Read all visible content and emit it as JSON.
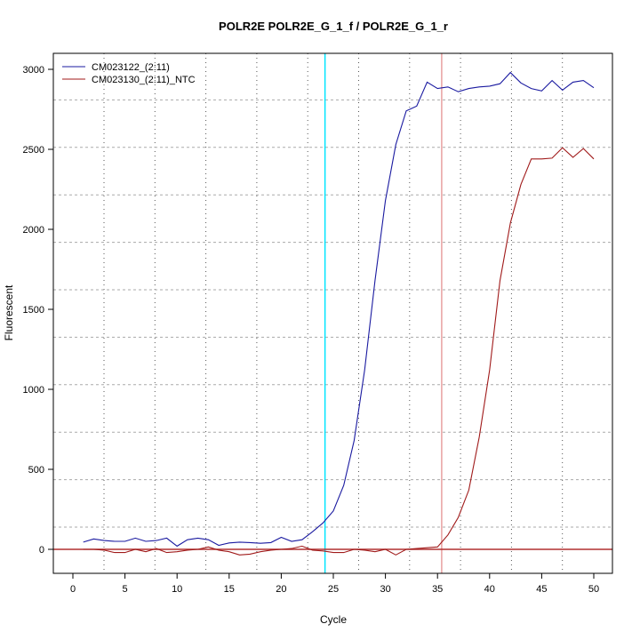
{
  "chart_data": {
    "type": "line",
    "title": "POLR2E  POLR2E_G_1_f / POLR2E_G_1_r",
    "xlabel": "Cycle",
    "ylabel": "Fluorescent",
    "xlim": [
      -1.9,
      51.7
    ],
    "ylim": [
      -150,
      3100
    ],
    "xticks": [
      0,
      5,
      10,
      15,
      20,
      25,
      30,
      35,
      40,
      45,
      50
    ],
    "yticks": [
      0,
      500,
      1000,
      1500,
      2000,
      2500,
      3000
    ],
    "grid": true,
    "legend_position": "top-left",
    "x": [
      1,
      2,
      3,
      4,
      5,
      6,
      7,
      8,
      9,
      10,
      11,
      12,
      13,
      14,
      15,
      16,
      17,
      18,
      19,
      20,
      21,
      22,
      23,
      24,
      25,
      26,
      27,
      28,
      29,
      30,
      31,
      32,
      33,
      34,
      35,
      36,
      37,
      38,
      39,
      40,
      41,
      42,
      43,
      44,
      45,
      46,
      47,
      48,
      49,
      50
    ],
    "series": [
      {
        "name": "CM023122_(2:11)",
        "color": "#1a1aa0",
        "values": [
          45,
          65,
          55,
          50,
          50,
          70,
          50,
          55,
          70,
          20,
          60,
          70,
          60,
          25,
          40,
          45,
          42,
          38,
          42,
          75,
          50,
          60,
          110,
          165,
          240,
          400,
          680,
          1120,
          1680,
          2180,
          2530,
          2740,
          2770,
          2920,
          2880,
          2890,
          2860,
          2880,
          2890,
          2895,
          2910,
          2980,
          2915,
          2880,
          2865,
          2930,
          2870,
          2920,
          2930,
          2885
        ]
      },
      {
        "name": "CM023130_(2:11)_NTC",
        "color": "#a01a1a",
        "values": [
          0,
          0,
          -5,
          -20,
          -20,
          0,
          -15,
          5,
          -20,
          -15,
          -5,
          0,
          15,
          -5,
          -15,
          -35,
          -30,
          -15,
          -5,
          0,
          5,
          20,
          -5,
          -10,
          -20,
          -20,
          0,
          -5,
          -15,
          0,
          -35,
          0,
          5,
          10,
          15,
          90,
          200,
          370,
          700,
          1120,
          1680,
          2040,
          2280,
          2440,
          2440,
          2445,
          2510,
          2450,
          2505,
          2440
        ]
      }
    ],
    "reference_lines": {
      "threshold_y": 0,
      "threshold_color": "#b03030",
      "vertical": [
        {
          "x": 24.2,
          "color": "#00e5ff"
        },
        {
          "x": 35.4,
          "color": "#e8a0a0"
        }
      ]
    }
  }
}
